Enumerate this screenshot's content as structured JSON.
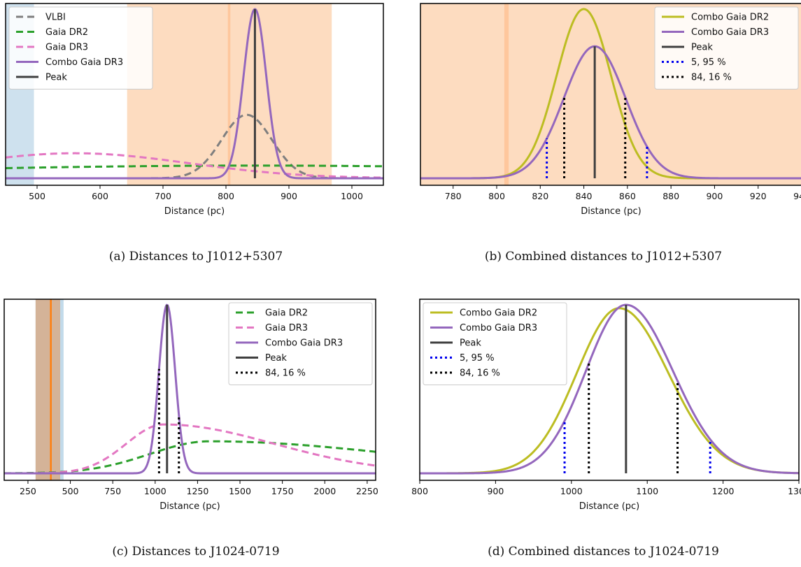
{
  "chart_data": [
    {
      "id": "a",
      "type": "line",
      "caption": "(a) Distances to J1012+5307",
      "xlabel": "Distance (pc)",
      "ylabel": "",
      "xlim": [
        450,
        1050
      ],
      "xticks": [
        500,
        600,
        700,
        800,
        900,
        1000
      ],
      "legend_loc": "top-left",
      "bands": [
        {
          "x": [
            440,
            495
          ],
          "color": "#aecde3",
          "opacity": 0.6
        },
        {
          "x": [
            643,
            968
          ],
          "color": "#fdd3b0",
          "opacity": 0.8
        },
        {
          "x": [
            803,
            807
          ],
          "color": "#fdbe8e",
          "opacity": 0.7
        }
      ],
      "vlines": [],
      "series": [
        {
          "name": "VLBI",
          "kind": "gauss",
          "center": 833,
          "sigma": 40,
          "amp": 0.375,
          "color": "#7f7f7f",
          "dash": "10,6",
          "width": 3
        },
        {
          "name": "Gaia DR2",
          "kind": "gauss",
          "center": 850,
          "sigma": 600,
          "amp": 0.075,
          "color": "#2ca02c",
          "dash": "10,6",
          "width": 3
        },
        {
          "name": "Gaia DR3",
          "kind": "gauss",
          "center": 560,
          "sigma": 180,
          "amp": 0.148,
          "color": "#e377c2",
          "dash": "10,6",
          "width": 3
        },
        {
          "name": "Combo Gaia DR3",
          "kind": "gauss",
          "center": 846,
          "sigma": 18,
          "amp": 1.0,
          "color": "#9467bd",
          "dash": "",
          "width": 3
        }
      ],
      "markers": [
        {
          "name": "Peak",
          "kind": "peak",
          "x": 846,
          "of": "Combo Gaia DR3",
          "color": "#3f3f3f",
          "style": "solid"
        }
      ],
      "legend": [
        "VLBI",
        "Gaia DR2",
        "Gaia DR3",
        "Combo Gaia DR3",
        "Peak"
      ]
    },
    {
      "id": "b",
      "type": "line",
      "caption": "(b) Combined distances to J1012+5307",
      "xlabel": "Distance (pc)",
      "ylabel": "",
      "xlim": [
        765,
        940
      ],
      "xticks": [
        780,
        800,
        820,
        840,
        860,
        880,
        900,
        920,
        940
      ],
      "legend_loc": "top-right",
      "bands": [
        {
          "x": [
            760,
            950
          ],
          "color": "#fdd3b0",
          "opacity": 0.8
        },
        {
          "x": [
            803.5,
            805.5
          ],
          "color": "#fdbe8e",
          "opacity": 0.7
        }
      ],
      "vlines": [],
      "series": [
        {
          "name": "Combo Gaia DR2",
          "kind": "gauss",
          "center": 840,
          "sigma": 12.5,
          "amp": 1.0,
          "color": "#bcbd22",
          "dash": "",
          "width": 3
        },
        {
          "name": "Combo Gaia DR3",
          "kind": "gauss",
          "center": 845,
          "sigma": 14.2,
          "amp": 0.78,
          "color": "#9467bd",
          "dash": "",
          "width": 3
        }
      ],
      "markers": [
        {
          "name": "Peak",
          "kind": "peak",
          "x": 845,
          "of": "Combo Gaia DR3",
          "color": "#3f3f3f",
          "style": "solid"
        },
        {
          "name": "5, 95 %",
          "kind": "pair",
          "x": [
            823,
            869
          ],
          "of": "Combo Gaia DR3",
          "color": "#0000ee",
          "style": "dot"
        },
        {
          "name": "84, 16 %",
          "kind": "pair",
          "x": [
            831,
            859
          ],
          "of": "Combo Gaia DR3",
          "color": "#000000",
          "style": "dot"
        }
      ],
      "legend": [
        "Combo Gaia DR2",
        "Combo Gaia DR3",
        "Peak",
        "5, 95 %",
        "84, 16 %"
      ]
    },
    {
      "id": "c",
      "type": "line",
      "caption": "(c) Distances to J1024-0719",
      "xlabel": "Distance (pc)",
      "ylabel": "",
      "xlim": [
        110,
        2300
      ],
      "xticks": [
        250,
        500,
        750,
        1000,
        1250,
        1500,
        1750,
        2000,
        2250
      ],
      "legend_loc": "top-right",
      "bands": [
        {
          "x": [
            295,
            460
          ],
          "color": "#aecde3",
          "opacity": 0.75
        },
        {
          "x": [
            295,
            440
          ],
          "color": "#d9a57c",
          "opacity": 0.75
        }
      ],
      "vlines": [
        {
          "x": 385,
          "color": "#ff7f0e",
          "width": 2.5
        }
      ],
      "series": [
        {
          "name": "Gaia DR2",
          "kind": "skew",
          "center": 1320,
          "sigma_left": 350,
          "sigma_right": 1100,
          "amp": 0.19,
          "color": "#2ca02c",
          "dash": "10,6",
          "width": 3
        },
        {
          "name": "Gaia DR3",
          "kind": "skew",
          "center": 1050,
          "sigma_left": 220,
          "sigma_right": 650,
          "amp": 0.29,
          "color": "#e377c2",
          "dash": "10,6",
          "width": 3
        },
        {
          "name": "Combo Gaia DR3",
          "kind": "gauss",
          "center": 1070,
          "sigma": 48,
          "amp": 1.0,
          "color": "#9467bd",
          "dash": "",
          "width": 3
        }
      ],
      "markers": [
        {
          "name": "Peak",
          "kind": "peak",
          "x": 1070,
          "of": "Combo Gaia DR3",
          "color": "#3f3f3f",
          "style": "solid"
        },
        {
          "name": "84, 16 %",
          "kind": "pair",
          "x": [
            1023,
            1140
          ],
          "of": "Combo Gaia DR3",
          "color": "#000000",
          "style": "dot"
        }
      ],
      "legend": [
        "Gaia DR2",
        "Gaia DR3",
        "Combo Gaia DR3",
        "Peak",
        "84, 16 %"
      ]
    },
    {
      "id": "d",
      "type": "line",
      "caption": "(d) Combined distances to J1024-0719",
      "xlabel": "Distance (pc)",
      "ylabel": "",
      "xlim": [
        800,
        1300
      ],
      "xticks": [
        800,
        900,
        1000,
        1100,
        1200,
        1300
      ],
      "legend_loc": "top-left",
      "bands": [],
      "vlines": [],
      "series": [
        {
          "name": "Combo Gaia DR2",
          "kind": "skew",
          "center": 1063,
          "sigma_left": 56,
          "sigma_right": 65,
          "amp": 0.98,
          "color": "#bcbd22",
          "dash": "",
          "width": 3
        },
        {
          "name": "Combo Gaia DR3",
          "kind": "skew",
          "center": 1072,
          "sigma_left": 53,
          "sigma_right": 62,
          "amp": 1.0,
          "color": "#9467bd",
          "dash": "",
          "width": 3
        }
      ],
      "markers": [
        {
          "name": "Peak",
          "kind": "peak",
          "x": 1072,
          "of": "Combo Gaia DR3",
          "color": "#3f3f3f",
          "style": "solid"
        },
        {
          "name": "5, 95 %",
          "kind": "pair",
          "x": [
            991,
            1183
          ],
          "of": "Combo Gaia DR3",
          "color": "#0000ee",
          "style": "dot"
        },
        {
          "name": "84, 16 %",
          "kind": "pair",
          "x": [
            1023,
            1140
          ],
          "of": "Combo Gaia DR3",
          "color": "#000000",
          "style": "dot"
        }
      ],
      "legend": [
        "Combo Gaia DR2",
        "Combo Gaia DR3",
        "Peak",
        "5, 95 %",
        "84, 16 %"
      ]
    }
  ]
}
